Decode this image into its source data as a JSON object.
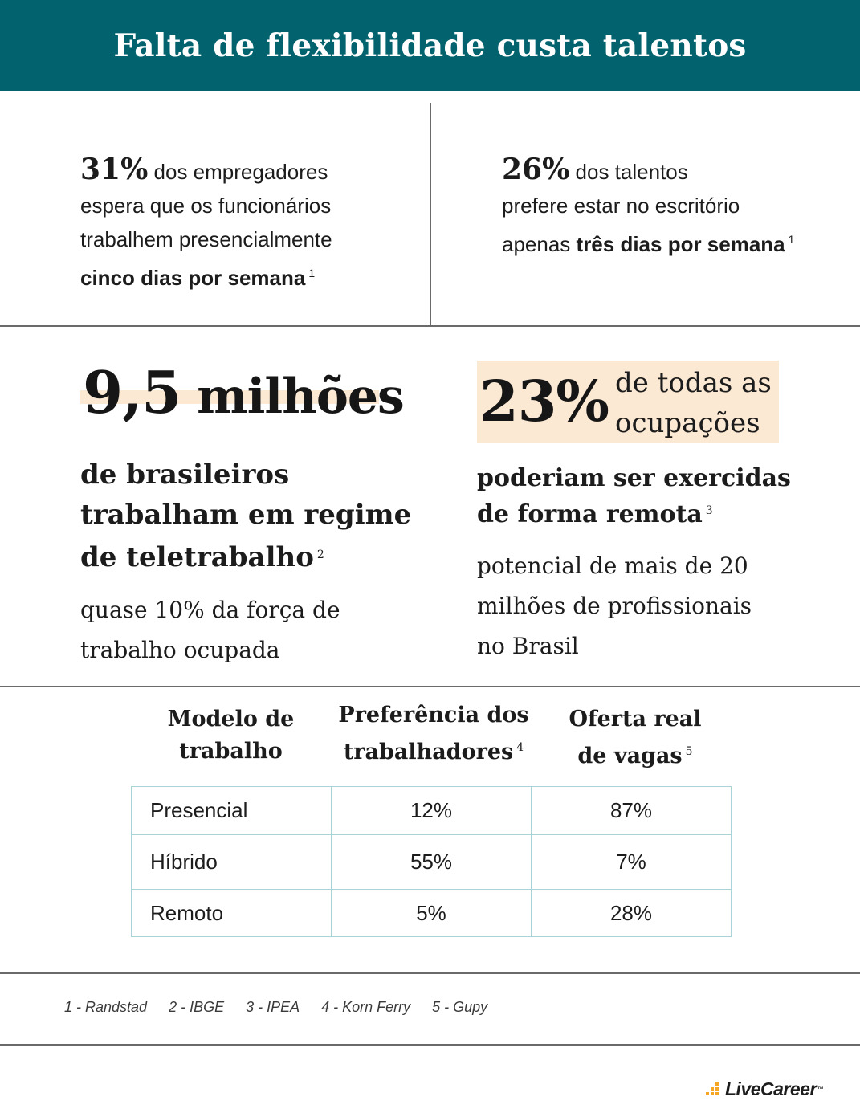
{
  "header": {
    "title": "Falta de flexibilidade custa talentos"
  },
  "stat_employers": {
    "pct": "31%",
    "line1": " dos empregadores",
    "line2": "espera que os funcionários",
    "line3": "trabalhem presencialmente",
    "bold": "cinco dias por semana",
    "ref": "1"
  },
  "stat_talents": {
    "pct": "26%",
    "line1": " dos talentos",
    "line2": "prefere estar no escritório",
    "prefix": "apenas ",
    "bold": "três dias por semana",
    "ref": "1"
  },
  "stat_remote_workers": {
    "number": "9,5",
    "unit": " milhões",
    "line1": "de brasileiros",
    "line2": "trabalham em regime",
    "line3": "de teletrabalho",
    "ref": "2",
    "note1": "quase 10% da força de",
    "note2": "trabalho ocupada"
  },
  "stat_occupations": {
    "pct": "23%",
    "side1": "de todas as",
    "side2": "ocupações",
    "line1": "poderiam ser exercidas",
    "line2": "de forma remota",
    "ref": "3",
    "note1": "potencial de mais de 20",
    "note2": "milhões de profissionais",
    "note3": "no Brasil"
  },
  "table": {
    "headers": [
      {
        "line1": "Modelo de",
        "line2": "trabalho",
        "ref": ""
      },
      {
        "line1": "Preferência dos",
        "line2": "trabalhadores",
        "ref": "4"
      },
      {
        "line1": "Oferta real",
        "line2": "de vagas",
        "ref": "5"
      }
    ],
    "rows": [
      [
        "Presencial",
        "12%",
        "87%"
      ],
      [
        "Híbrido",
        "55%",
        "7%"
      ],
      [
        "Remoto",
        "5%",
        "28%"
      ]
    ]
  },
  "sources": [
    "1 - Randstad",
    "2 - IBGE",
    "3 - IPEA",
    "4 - Korn Ferry",
    "5 - Gupy"
  ],
  "logo": {
    "text": "LiveCareer",
    "mark": "™"
  },
  "colors": {
    "header_bg": "#02636e",
    "highlight": "#fbe9d4",
    "table_border": "#a9d3d6",
    "logo_accent": "#f5a623"
  }
}
